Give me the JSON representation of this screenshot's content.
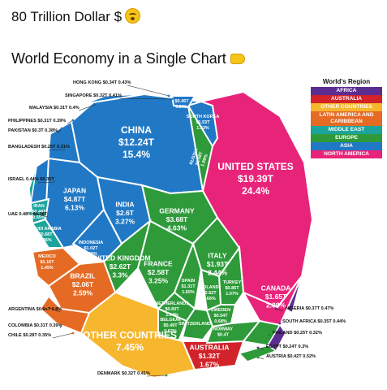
{
  "header": {
    "headline": "80 Trillion Dollar $",
    "headline_emoji": "flushed-face-icon",
    "subtitle": "World Economy in a Single Chart",
    "subtitle_emoji": "pointing-hand-icon"
  },
  "legend": {
    "title": "World's Region",
    "items": [
      {
        "label": "AFRICA",
        "color": "#5b2d90"
      },
      {
        "label": "AUSTRALIA",
        "color": "#d2232a"
      },
      {
        "label": "OTHER COUNTRIES",
        "color": "#f6b62d"
      },
      {
        "label": "LATIN AMERICA AND CARIBBEAN",
        "color": "#e56a24"
      },
      {
        "label": "MIDDLE EAST",
        "color": "#1ba39c"
      },
      {
        "label": "EUROPE",
        "color": "#2e9a3a"
      },
      {
        "label": "ASIA",
        "color": "#2179c6"
      },
      {
        "label": "NORTH AMERICA",
        "color": "#e8247a"
      }
    ]
  },
  "chart_data": {
    "type": "voronoi-treemap",
    "unit": "Trillion USD",
    "cells": [
      {
        "name": "UNITED STATES",
        "value": "$19.39T",
        "share": "24.4%",
        "region": "NORTH AMERICA"
      },
      {
        "name": "CHINA",
        "value": "$12.24T",
        "share": "15.4%",
        "region": "ASIA"
      },
      {
        "name": "JAPAN",
        "value": "$4.87T",
        "share": "6.13%",
        "region": "ASIA"
      },
      {
        "name": "GERMANY",
        "value": "$3.68T",
        "share": "4.63%",
        "region": "EUROPE"
      },
      {
        "name": "INDIA",
        "value": "$2.6T",
        "share": "3.27%",
        "region": "ASIA"
      },
      {
        "name": "UNITED KINGDOM",
        "value": "$2.62T",
        "share": "3.3%",
        "region": "EUROPE"
      },
      {
        "name": "FRANCE",
        "value": "$2.58T",
        "share": "3.25%",
        "region": "EUROPE"
      },
      {
        "name": "ITALY",
        "value": "$1.93T",
        "share": "2.44%",
        "region": "EUROPE"
      },
      {
        "name": "BRAZIL",
        "value": "$2.06T",
        "share": "2.59%",
        "region": "LATIN AMERICA AND CARIBBEAN"
      },
      {
        "name": "CANADA",
        "value": "$1.65T",
        "share": "2.08%",
        "region": "NORTH AMERICA"
      },
      {
        "name": "RUSSIA",
        "value": "$1.58T",
        "share": "1.99%",
        "region": "EUROPE"
      },
      {
        "name": "SPAIN",
        "value": "$1.31T",
        "share": "1.65%",
        "region": "EUROPE"
      },
      {
        "name": "AUSTRALIA",
        "value": "$1.32T",
        "share": "1.67%",
        "region": "AUSTRALIA"
      },
      {
        "name": "SOUTH KOREA",
        "value": "$1.53T",
        "share": "1.93%",
        "region": "ASIA"
      },
      {
        "name": "MEXICO",
        "value": "$1.15T",
        "share": "1.45%",
        "region": "LATIN AMERICA AND CARIBBEAN"
      },
      {
        "name": "INDONESIA",
        "value": "$1.02T",
        "share": "1.28%",
        "region": "ASIA"
      },
      {
        "name": "TURKEY",
        "value": "$0.85T",
        "share": "1.07%",
        "region": "EUROPE"
      },
      {
        "name": "NETHERLANDS",
        "value": "$0.83T",
        "share": "1.04%",
        "region": "EUROPE"
      },
      {
        "name": "SAUDI ARABIA",
        "value": "$0.68T",
        "share": "0.86%",
        "region": "MIDDLE EAST"
      },
      {
        "name": "SWITZERLAND",
        "value": "",
        "share": "",
        "region": "EUROPE"
      },
      {
        "name": "POLAND",
        "value": "$0.52T",
        "share": "0.66%",
        "region": "EUROPE"
      },
      {
        "name": "SWEDEN",
        "value": "$0.54T",
        "share": "0.68%",
        "region": "EUROPE"
      },
      {
        "name": "BELGIUM",
        "value": "$0.49T",
        "share": "0.62%",
        "region": "EUROPE"
      },
      {
        "name": "NORWAY",
        "value": "$0.4T",
        "share": "",
        "region": "EUROPE"
      },
      {
        "name": "IRAN",
        "value": "$0.44T",
        "share": "0.55%",
        "region": "MIDDLE EAST"
      },
      {
        "name": "THAILAND",
        "value": "$0.45T",
        "share": "0.57%",
        "region": "ASIA"
      },
      {
        "name": "OTHER COUNTRIES",
        "value": "",
        "share": "7.45%",
        "region": "OTHER COUNTRIES"
      }
    ],
    "callouts": [
      {
        "text": "HONG KONG $0.34T 0.43%",
        "color": "#2179c6"
      },
      {
        "text": "SINGAPORE $0.32T 0.41%",
        "color": "#2179c6"
      },
      {
        "text": "MALAYSIA $0.31T 0.4%",
        "color": "#2179c6"
      },
      {
        "text": "PHILIPPINES $0.31T 0.39%",
        "color": "#2179c6"
      },
      {
        "text": "PAKISTAN $0.3T 0.38%",
        "color": "#2179c6"
      },
      {
        "text": "BANGLADESH $0.25T 0.31%",
        "color": "#2179c6"
      },
      {
        "text": "ISRAEL 0.44% $0.35T",
        "color": "#1ba39c"
      },
      {
        "text": "UAE 0.48% $0.38T",
        "color": "#1ba39c"
      },
      {
        "text": "ARGENTINA $0.64T 0.8%",
        "color": "#e56a24"
      },
      {
        "text": "COLOMBIA $0.31T 0.39%",
        "color": "#e56a24"
      },
      {
        "text": "CHILE $0.28T 0.35%",
        "color": "#e56a24"
      },
      {
        "text": "DENMARK $0.32T 0.41%",
        "color": "#2e9a3a"
      },
      {
        "text": "NIGERIA $0.37T 0.47%",
        "color": "#5b2d90"
      },
      {
        "text": "SOUTH AFRICA $0.35T 0.44%",
        "color": "#5b2d90"
      },
      {
        "text": "FINLAND $0.25T 0.32%",
        "color": "#2e9a3a"
      },
      {
        "text": "EGYPT $0.24T 0.3%",
        "color": "#5b2d90"
      },
      {
        "text": "AUSTRIA $0.42T 0.52%",
        "color": "#2e9a3a"
      }
    ]
  }
}
